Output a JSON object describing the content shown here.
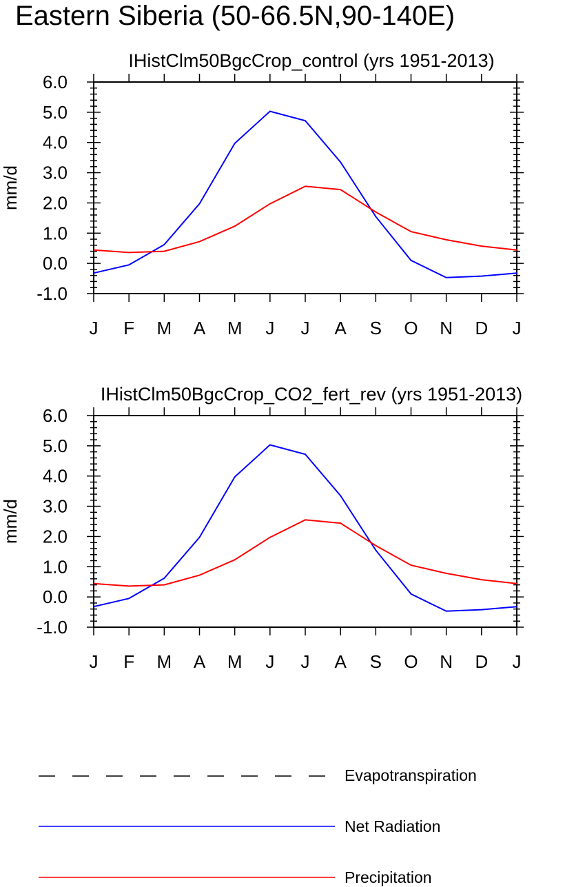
{
  "figure": {
    "title": "Eastern Siberia (50-66.5N,90-140E)"
  },
  "colors": {
    "net_radiation": "#0000ff",
    "precipitation": "#ff0000",
    "evapotranspiration": "#000000"
  },
  "legend": {
    "items": [
      {
        "label": "Evapotranspiration",
        "style": "dashed",
        "color": "#000000"
      },
      {
        "label": "Net Radiation",
        "style": "solid",
        "color": "#0000ff"
      },
      {
        "label": "Precipitation",
        "style": "solid",
        "color": "#ff0000"
      }
    ]
  },
  "chart_data": [
    {
      "type": "line",
      "title": "IHistClm50BgcCrop_control (yrs 1951-2013)",
      "ylabel": "mm/d",
      "xlabel": "",
      "categories": [
        "J",
        "F",
        "M",
        "A",
        "M",
        "J",
        "J",
        "A",
        "S",
        "O",
        "N",
        "D",
        "J"
      ],
      "ylim": [
        -1.0,
        6.0
      ],
      "yticks": [
        "-1.0",
        "0.0",
        "1.0",
        "2.0",
        "3.0",
        "4.0",
        "5.0",
        "6.0"
      ],
      "grid": false,
      "series": [
        {
          "name": "Net Radiation",
          "color": "#0000ff",
          "values": [
            -0.32,
            -0.05,
            0.62,
            1.97,
            3.97,
            5.03,
            4.72,
            3.35,
            1.55,
            0.1,
            -0.47,
            -0.42,
            -0.32
          ]
        },
        {
          "name": "Precipitation",
          "color": "#ff0000",
          "values": [
            0.44,
            0.36,
            0.4,
            0.72,
            1.23,
            1.97,
            2.55,
            2.44,
            1.7,
            1.05,
            0.78,
            0.57,
            0.44
          ]
        }
      ]
    },
    {
      "type": "line",
      "title": "IHistClm50BgcCrop_CO2_fert_rev (yrs 1951-2013)",
      "ylabel": "mm/d",
      "xlabel": "",
      "categories": [
        "J",
        "F",
        "M",
        "A",
        "M",
        "J",
        "J",
        "A",
        "S",
        "O",
        "N",
        "D",
        "J"
      ],
      "ylim": [
        -1.0,
        6.0
      ],
      "yticks": [
        "-1.0",
        "0.0",
        "1.0",
        "2.0",
        "3.0",
        "4.0",
        "5.0",
        "6.0"
      ],
      "grid": false,
      "series": [
        {
          "name": "Net Radiation",
          "color": "#0000ff",
          "values": [
            -0.32,
            -0.05,
            0.62,
            1.97,
            3.97,
            5.03,
            4.72,
            3.35,
            1.55,
            0.1,
            -0.47,
            -0.42,
            -0.32
          ]
        },
        {
          "name": "Precipitation",
          "color": "#ff0000",
          "values": [
            0.44,
            0.36,
            0.4,
            0.72,
            1.23,
            1.97,
            2.55,
            2.44,
            1.7,
            1.05,
            0.78,
            0.57,
            0.44
          ]
        }
      ]
    }
  ]
}
